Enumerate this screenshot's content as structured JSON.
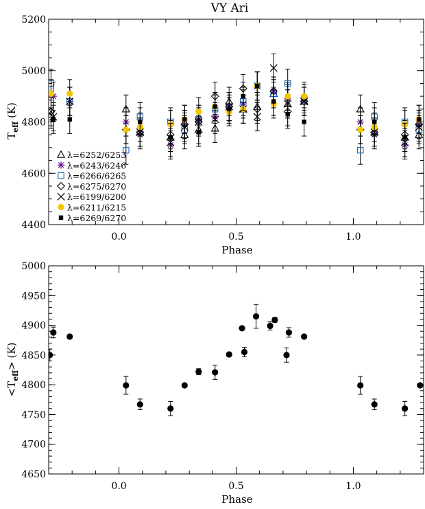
{
  "figure": {
    "title": "VY Ari"
  },
  "chart_data": [
    {
      "type": "scatter",
      "title": "VY Ari",
      "xlabel": "Phase",
      "ylabel_main": "T",
      "ylabel_sub": "eff",
      "ylabel_unit": " (K)",
      "xlim": [
        -0.3,
        1.3
      ],
      "ylim": [
        4400,
        5200
      ],
      "xticks": [
        0.0,
        0.5,
        1.0
      ],
      "xtick_labels": [
        "0.0",
        "0.5",
        "1.0"
      ],
      "yticks": [
        4400,
        4600,
        4800,
        5000,
        5200
      ],
      "ytick_labels": [
        "4400",
        "4600",
        "4800",
        "5000",
        "5200"
      ],
      "legend_position": "lower-left",
      "series": [
        {
          "name": "λ=6252/6253",
          "marker": "triangle-open",
          "color": "#000000",
          "x": [
            -0.29,
            0.03,
            0.09,
            0.22,
            0.28,
            0.34,
            0.41,
            0.47,
            0.53,
            0.59,
            0.66,
            0.72,
            0.79,
            1.03,
            1.09,
            1.22,
            1.28
          ],
          "y": [
            4830,
            4850,
            4760,
            4740,
            4750,
            4770,
            4775,
            4880,
            4850,
            4860,
            4910,
            4870,
            4880,
            4850,
            4760,
            4740,
            4750
          ]
        },
        {
          "name": "λ=6243/6246",
          "marker": "star",
          "color": "#6a1b9a",
          "x": [
            -0.28,
            -0.21,
            0.03,
            0.09,
            0.22,
            0.28,
            0.34,
            0.41,
            0.47,
            0.53,
            0.59,
            0.66,
            0.72,
            0.79,
            1.03,
            1.09,
            1.22,
            1.28
          ],
          "y": [
            4900,
            4880,
            4800,
            4750,
            4710,
            4790,
            4810,
            4820,
            4860,
            4870,
            4940,
            4920,
            4890,
            4880,
            4800,
            4750,
            4710,
            4790
          ]
        },
        {
          "name": "λ=6266/6265",
          "marker": "square-open",
          "color": "#1565c0",
          "x": [
            -0.29,
            -0.21,
            0.03,
            0.09,
            0.22,
            0.28,
            0.34,
            0.41,
            0.47,
            0.53,
            0.59,
            0.66,
            0.72,
            0.79,
            1.03,
            1.09,
            1.22,
            1.28
          ],
          "y": [
            4950,
            4880,
            4690,
            4820,
            4800,
            4770,
            4810,
            4850,
            4860,
            4880,
            4940,
            4910,
            4950,
            4890,
            4690,
            4820,
            4800,
            4770
          ]
        },
        {
          "name": "λ=6275/6270",
          "marker": "diamond-open",
          "color": "#000000",
          "x": [
            -0.29,
            0.03,
            0.09,
            0.22,
            0.28,
            0.34,
            0.41,
            0.47,
            0.53,
            0.59,
            0.66,
            0.72,
            0.79,
            1.03,
            1.09,
            1.22,
            1.28
          ],
          "y": [
            4840,
            4770,
            4760,
            4750,
            4790,
            4800,
            4900,
            4860,
            4930,
            4850,
            4920,
            4840,
            4880,
            4770,
            4760,
            4750,
            4790
          ]
        },
        {
          "name": "λ=6199/6200",
          "marker": "x",
          "color": "#000000",
          "x": [
            -0.28,
            -0.21,
            0.09,
            0.22,
            0.28,
            0.34,
            0.41,
            0.47,
            0.53,
            0.59,
            0.66,
            0.72,
            0.79,
            1.09,
            1.22,
            1.28
          ],
          "y": [
            4820,
            4880,
            4760,
            4720,
            4780,
            4800,
            4810,
            4860,
            4850,
            4820,
            5010,
            4870,
            4880,
            4760,
            4720,
            4780
          ]
        },
        {
          "name": "λ=6211/6215",
          "marker": "circle-filled",
          "color": "#f2c500",
          "x": [
            -0.29,
            -0.21,
            0.03,
            0.09,
            0.22,
            0.28,
            0.34,
            0.41,
            0.47,
            0.53,
            0.59,
            0.66,
            0.72,
            0.79,
            1.03,
            1.09,
            1.22,
            1.28
          ],
          "y": [
            4910,
            4910,
            4770,
            4780,
            4790,
            4810,
            4840,
            4860,
            4840,
            4850,
            4940,
            4870,
            4900,
            4900,
            4770,
            4780,
            4790,
            4810
          ]
        },
        {
          "name": "λ=6269/6270",
          "marker": "square-filled",
          "color": "#000000",
          "x": [
            -0.28,
            -0.21,
            0.09,
            0.22,
            0.28,
            0.34,
            0.41,
            0.47,
            0.53,
            0.59,
            0.66,
            0.72,
            0.79,
            1.09,
            1.22,
            1.28
          ],
          "y": [
            4810,
            4810,
            4800,
            4740,
            4810,
            4760,
            4860,
            4850,
            4900,
            4940,
            4880,
            4830,
            4800,
            4800,
            4740,
            4810
          ]
        }
      ]
    },
    {
      "type": "scatter",
      "xlabel": "Phase",
      "ylabel_main": "<T",
      "ylabel_sub": "eff",
      "ylabel_unit": "> (K)",
      "xlim": [
        -0.3,
        1.3
      ],
      "ylim": [
        4650,
        5000
      ],
      "xticks": [
        0.0,
        0.5,
        1.0
      ],
      "xtick_labels": [
        "0.0",
        "0.5",
        "1.0"
      ],
      "yticks": [
        4650,
        4700,
        4750,
        4800,
        4850,
        4900,
        4950,
        5000
      ],
      "ytick_labels": [
        "4650",
        "4700",
        "4750",
        "4800",
        "4850",
        "4900",
        "4950",
        "5000"
      ],
      "series": [
        {
          "marker": "circle-filled",
          "color": "#000000",
          "x": [
            -0.295,
            -0.28,
            -0.21,
            0.03,
            0.09,
            0.22,
            0.28,
            0.34,
            0.41,
            0.47,
            0.525,
            0.535,
            0.585,
            0.645,
            0.665,
            0.715,
            0.725,
            0.79,
            1.03,
            1.09,
            1.22,
            1.285
          ],
          "y": [
            4850,
            4888,
            4881,
            4799,
            4767,
            4760,
            4799,
            4822,
            4821,
            4851,
            4895,
            4855,
            4915,
            4899,
            4909,
            4850,
            4888,
            4881,
            4799,
            4767,
            4760,
            4799
          ],
          "err": [
            10,
            9,
            3,
            15,
            9,
            12,
            3,
            5,
            12,
            3,
            3,
            8,
            20,
            7,
            4,
            12,
            8,
            3,
            15,
            9,
            12,
            3
          ]
        }
      ]
    }
  ]
}
